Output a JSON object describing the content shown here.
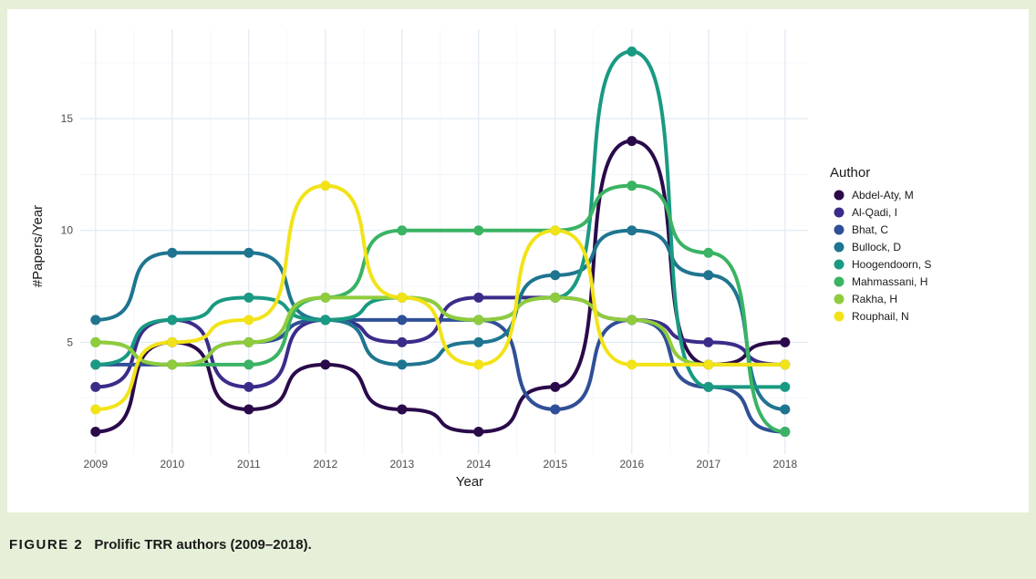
{
  "caption": {
    "figure_label": "FIGURE 2",
    "text": "Prolific TRR authors (2009–2018)."
  },
  "chart_data": {
    "type": "line",
    "interpolation": "smooth step",
    "x": [
      2009,
      2010,
      2011,
      2012,
      2013,
      2014,
      2015,
      2016,
      2017,
      2018
    ],
    "xlabel": "Year",
    "ylabel": "#Papers/Year",
    "yticks": [
      5,
      10,
      15
    ],
    "ylim": [
      0,
      19
    ],
    "xlim": [
      2008.8,
      2018.3
    ],
    "grid": true,
    "legend_title": "Author",
    "legend_position": "right",
    "series": [
      {
        "name": "Abdel-Aty, M",
        "color": "#2a0a4a",
        "values": [
          1,
          5,
          2,
          4,
          2,
          1,
          3,
          14,
          4,
          5
        ]
      },
      {
        "name": "Al-Qadi, I",
        "color": "#3b2c8a",
        "values": [
          3,
          6,
          3,
          6,
          5,
          7,
          7,
          6,
          5,
          4
        ]
      },
      {
        "name": "Bhat, C",
        "color": "#2f4f96",
        "values": [
          4,
          4,
          5,
          6,
          6,
          6,
          2,
          6,
          3,
          1
        ]
      },
      {
        "name": "Bullock, D",
        "color": "#1f7590",
        "values": [
          6,
          9,
          9,
          6,
          4,
          5,
          8,
          10,
          8,
          2
        ]
      },
      {
        "name": "Hoogendoorn, S",
        "color": "#199a82",
        "values": [
          4,
          6,
          7,
          6,
          7,
          6,
          7,
          18,
          3,
          3
        ]
      },
      {
        "name": "Mahmassani, H",
        "color": "#3ab363",
        "values": [
          5,
          4,
          4,
          7,
          10,
          10,
          10,
          12,
          9,
          1
        ]
      },
      {
        "name": "Rakha, H",
        "color": "#8fcc3c",
        "values": [
          5,
          4,
          5,
          7,
          7,
          6,
          7,
          6,
          4,
          4
        ]
      },
      {
        "name": "Rouphail, N",
        "color": "#f2e318",
        "values": [
          2,
          5,
          6,
          12,
          7,
          4,
          10,
          4,
          4,
          4
        ]
      }
    ]
  }
}
